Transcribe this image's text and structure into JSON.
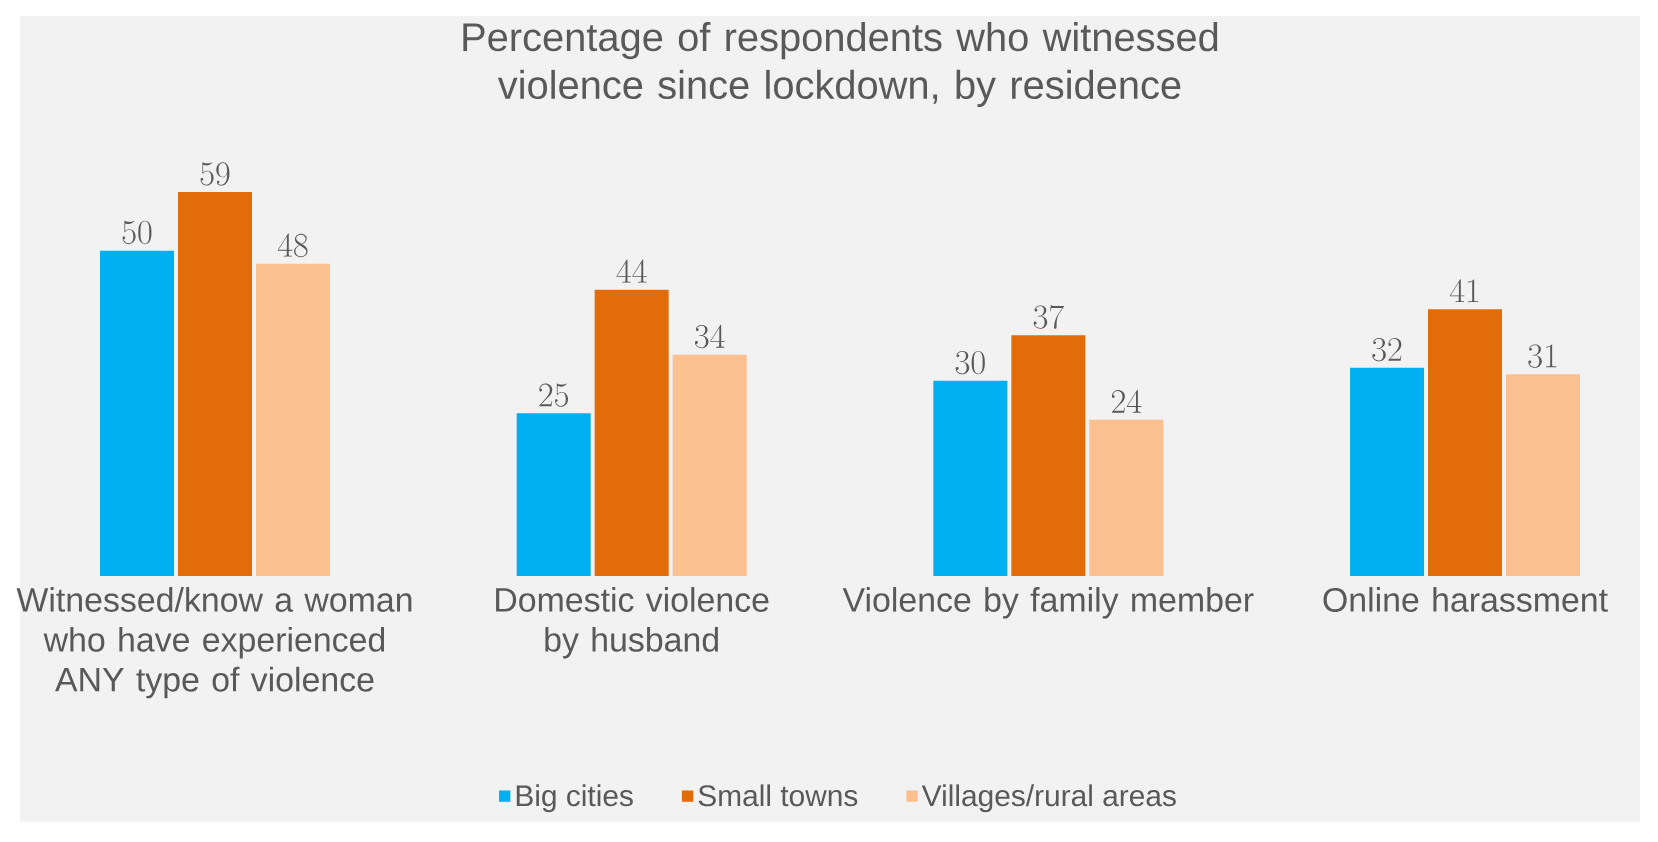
{
  "chart_data": {
    "type": "bar",
    "title": "Percentage of respondents who witnessed violence since lockdown, by residence",
    "categories": [
      "Witnessed/know a woman who have experienced ANY type of violence",
      "Domestic violence by husband",
      "Violence by family member",
      "Online harassment"
    ],
    "series": [
      {
        "name": "Big cities",
        "color": "#00b0f0",
        "values": [
          50,
          25,
          30,
          32
        ]
      },
      {
        "name": "Small towns",
        "color": "#e36c0a",
        "values": [
          59,
          44,
          37,
          41
        ]
      },
      {
        "name": "Villages/rural areas",
        "color": "#fac090",
        "values": [
          48,
          34,
          24,
          31
        ]
      }
    ],
    "data_labels": true,
    "legend": "bottom",
    "tick_labels": "x",
    "grid": false
  }
}
